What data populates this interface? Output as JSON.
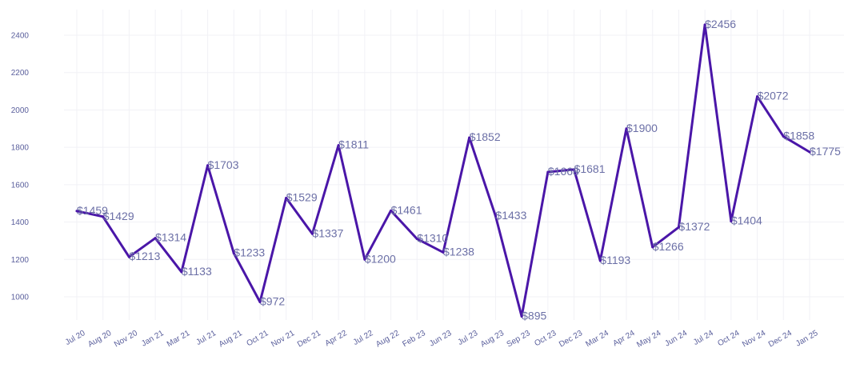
{
  "chart_data": {
    "type": "line",
    "title": "",
    "xlabel": "",
    "ylabel": "",
    "ylim": [
      880,
      2500
    ],
    "yticks": [
      1000,
      1200,
      1400,
      1600,
      1800,
      2000,
      2200,
      2400
    ],
    "grid": true,
    "legend": "none",
    "colors": {
      "line": "#4a16a8",
      "grid": "#f1f1f6",
      "tick_text": "#5a5f9c",
      "label_text": "#6b6fa6"
    },
    "categories": [
      "Jul 20",
      "Aug 20",
      "Nov 20",
      "Jan 21",
      "Mar 21",
      "Jul 21",
      "Aug 21",
      "Oct 21",
      "Nov 21",
      "Dec 21",
      "Apr 22",
      "Jul 22",
      "Aug 22",
      "Feb 23",
      "Jun 23",
      "Jul 23",
      "Aug 23",
      "Sep 23",
      "Oct 23",
      "Dec 23",
      "Mar 24",
      "Apr 24",
      "May 24",
      "Jun 24",
      "Jul 24",
      "Oct 24",
      "Nov 24",
      "Dec 24",
      "Jan 25"
    ],
    "values": [
      1459,
      1429,
      1213,
      1314,
      1133,
      1703,
      1233,
      972,
      1529,
      1337,
      1811,
      1200,
      1461,
      1310,
      1238,
      1852,
      1433,
      895,
      1668,
      1681,
      1193,
      1900,
      1266,
      1372,
      2456,
      1404,
      2072,
      1858,
      1775
    ],
    "data_labels": [
      "$1459",
      "$1429",
      "$1213",
      "$1314",
      "$1133",
      "$1703",
      "$1233",
      "$972",
      "$1529",
      "$1337",
      "$1811",
      "$1200",
      "$1461",
      "$1310",
      "$1238",
      "$1852",
      "$1433",
      "$895",
      "$1668",
      "$1681",
      "$1193",
      "$1900",
      "$1266",
      "$1372",
      "$2456",
      "$1404",
      "$2072",
      "$1858",
      "$1775"
    ]
  }
}
